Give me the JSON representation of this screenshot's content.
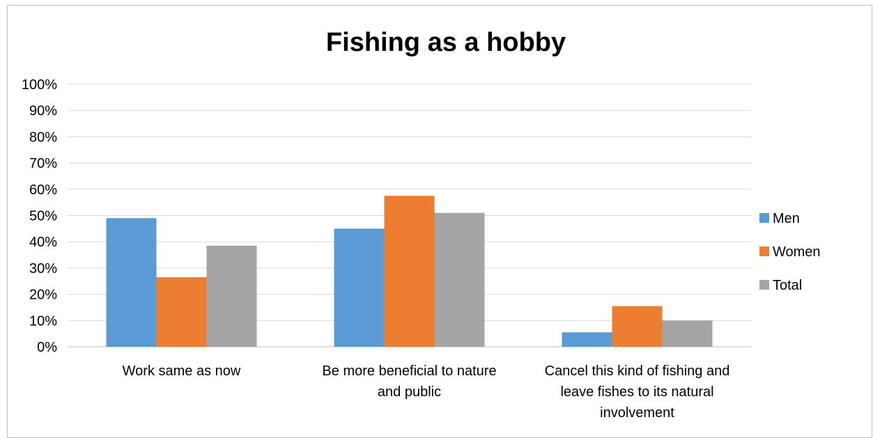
{
  "chart_data": {
    "type": "bar",
    "title": "Fishing as a hobby",
    "categories": [
      [
        "Work same as now"
      ],
      [
        "Be more beneficial to nature",
        "and public"
      ],
      [
        "Cancel this kind of fishing and",
        "leave fishes to its natural",
        "involvement"
      ]
    ],
    "series": [
      {
        "name": "Men",
        "color": "#5B9BD5",
        "values": [
          49,
          45,
          5.5
        ]
      },
      {
        "name": "Women",
        "color": "#ED7D31",
        "values": [
          26.5,
          57.5,
          15.5
        ]
      },
      {
        "name": "Total",
        "color": "#A5A5A5",
        "values": [
          38.5,
          51,
          10
        ]
      }
    ],
    "yticks": [
      "0%",
      "10%",
      "20%",
      "30%",
      "40%",
      "50%",
      "60%",
      "70%",
      "80%",
      "90%",
      "100%"
    ],
    "ylim": [
      0,
      100
    ],
    "grid": true,
    "legend_position": "right"
  }
}
